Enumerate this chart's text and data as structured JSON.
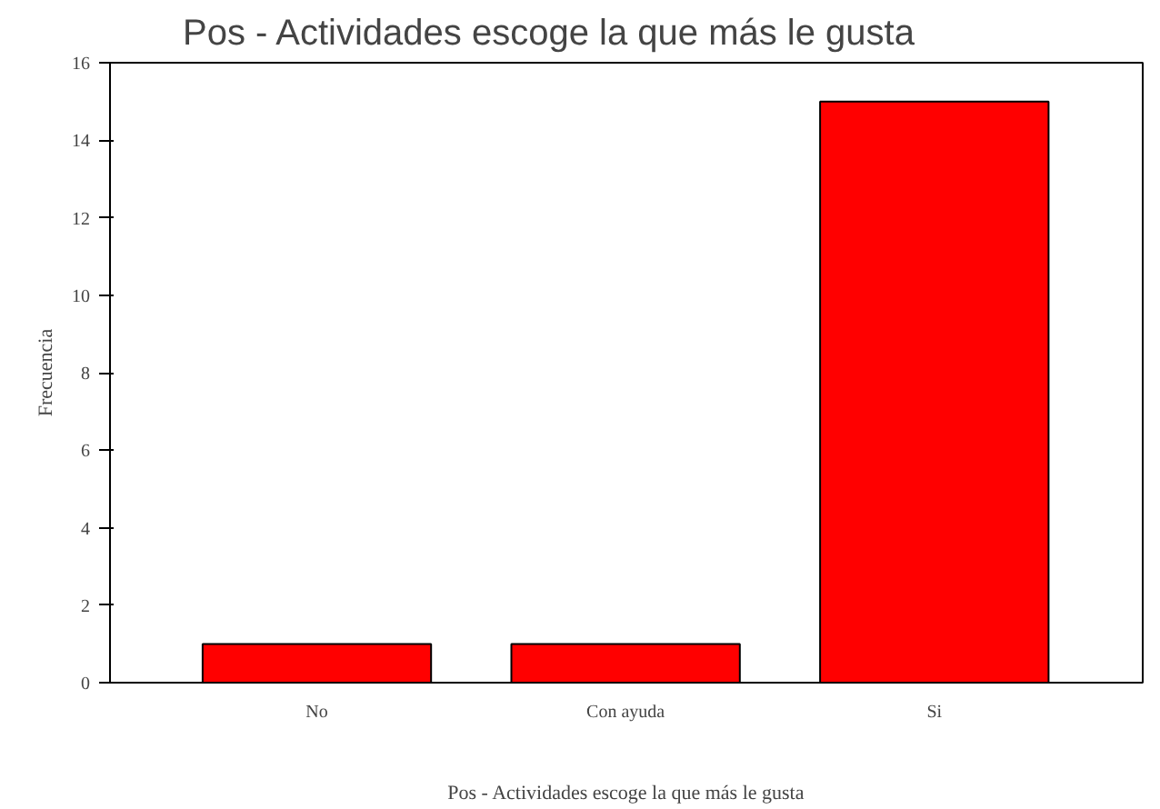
{
  "chart_data": {
    "type": "bar",
    "title": "Pos - Actividades escoge la que más le gusta",
    "xlabel": "Pos - Actividades escoge la que más le gusta",
    "ylabel": "Frecuencia",
    "categories": [
      "No",
      "Con ayuda",
      "Si"
    ],
    "values": [
      1,
      1,
      15
    ],
    "color": "#ff0000",
    "ylim": [
      0,
      16
    ],
    "yticks": [
      0,
      2,
      4,
      6,
      8,
      10,
      12,
      14,
      16
    ],
    "grid": false
  }
}
